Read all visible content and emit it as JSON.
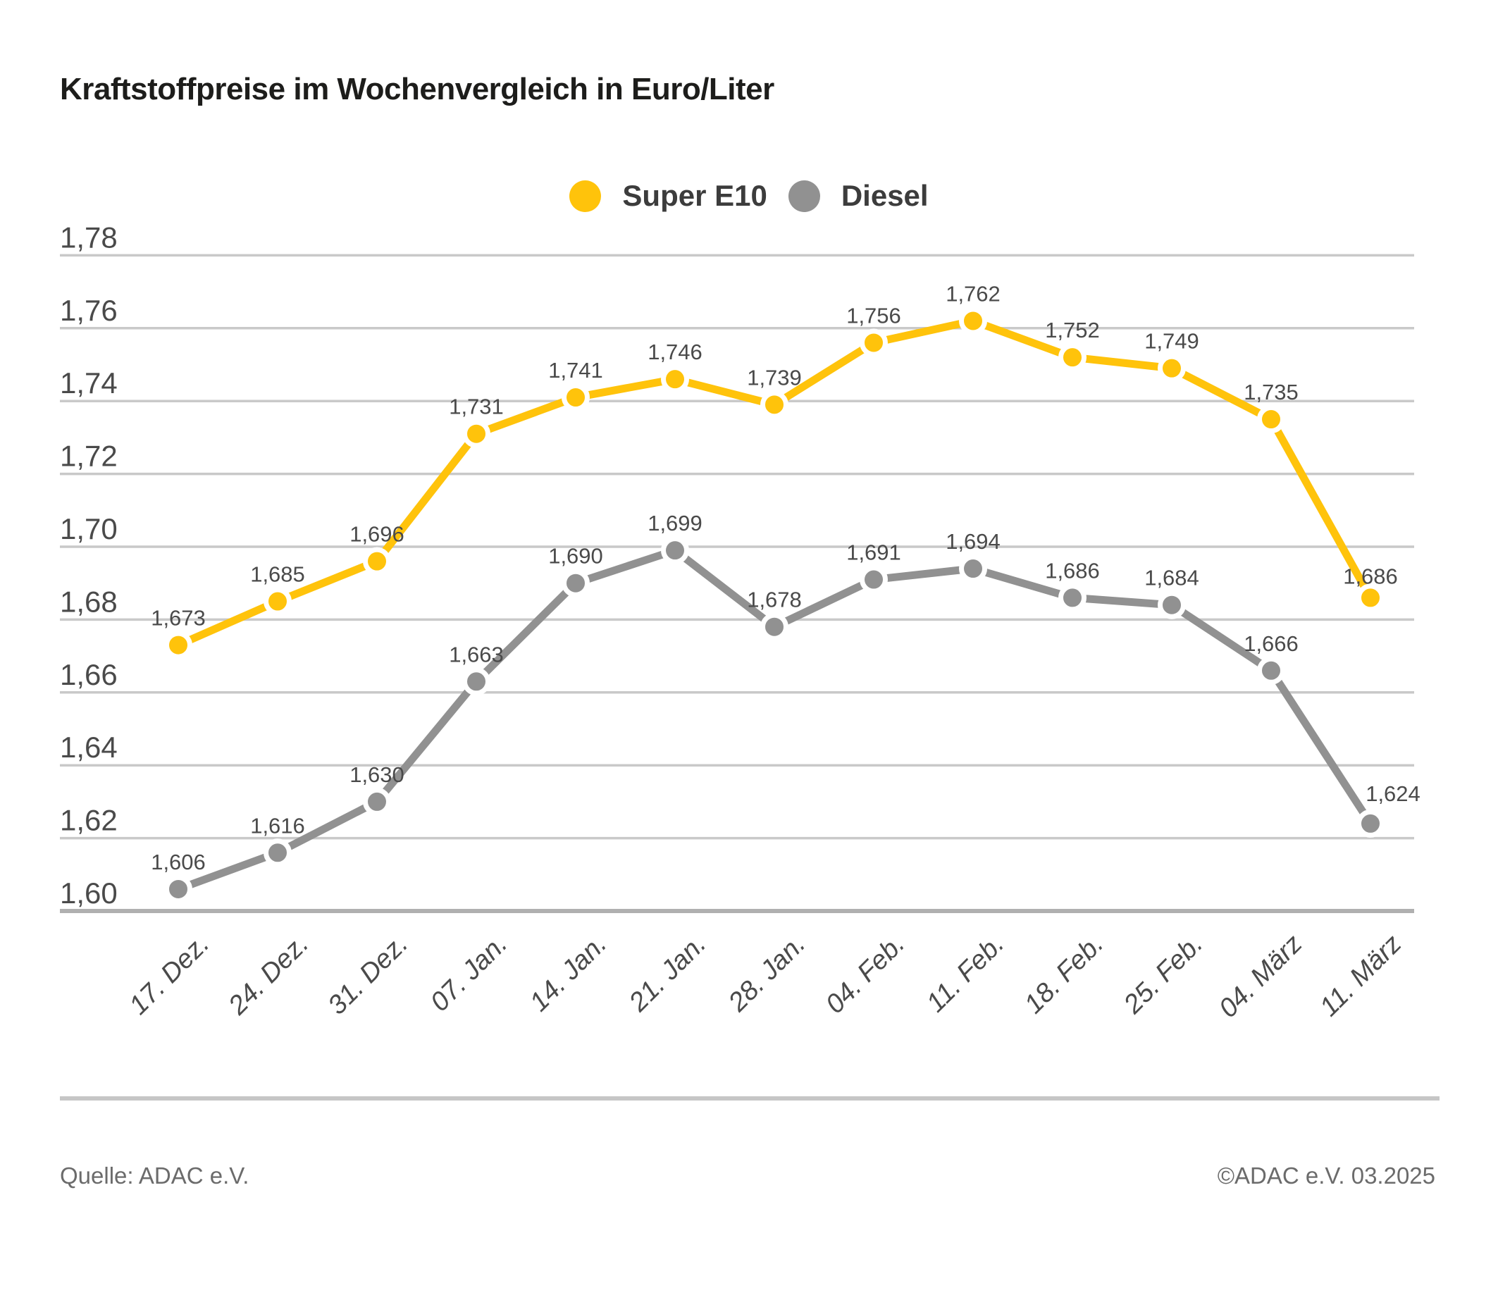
{
  "title": "Kraftstoffpreise im Wochenvergleich in Euro/Liter",
  "chart_data": {
    "type": "line",
    "title": "Kraftstoffpreise im Wochenvergleich in Euro/Liter",
    "categories": [
      "17. Dez.",
      "24. Dez.",
      "31. Dez.",
      "07. Jan.",
      "14. Jan.",
      "21. Jan.",
      "28. Jan.",
      "04. Feb.",
      "11. Feb.",
      "18. Feb.",
      "25. Feb.",
      "04. März",
      "11. März"
    ],
    "series": [
      {
        "name": "Super E10",
        "color": "#ffc30b",
        "values": [
          1.673,
          1.685,
          1.696,
          1.731,
          1.741,
          1.746,
          1.739,
          1.756,
          1.762,
          1.752,
          1.749,
          1.735,
          1.686
        ],
        "labels": [
          "1,673",
          "1,685",
          "1,696",
          "1,731",
          "1,741",
          "1,746",
          "1,739",
          "1,756",
          "1,762",
          "1,752",
          "1,749",
          "1,735",
          "1,686"
        ]
      },
      {
        "name": "Diesel",
        "color": "#919191",
        "values": [
          1.606,
          1.616,
          1.63,
          1.663,
          1.69,
          1.699,
          1.678,
          1.691,
          1.694,
          1.686,
          1.684,
          1.666,
          1.624
        ],
        "labels": [
          "1,606",
          "1,616",
          "1,630",
          "1,663",
          "1,690",
          "1,699",
          "1,678",
          "1,691",
          "1,694",
          "1,686",
          "1,684",
          "1,666",
          "1,624"
        ]
      }
    ],
    "ylabel": "",
    "xlabel": "",
    "ylim": [
      1.6,
      1.78
    ],
    "ytick_step": 0.02,
    "ytick_labels": [
      "1,60",
      "1,62",
      "1,64",
      "1,66",
      "1,68",
      "1,70",
      "1,72",
      "1,74",
      "1,76",
      "1,78"
    ],
    "grid": "horizontal",
    "legend_position": "top-center"
  },
  "footer": {
    "source": "Quelle: ADAC e.V.",
    "copyright": "©ADAC e.V. 03.2025"
  },
  "colors": {
    "accent_yellow": "#ffc30b",
    "series_gray": "#919191",
    "gridline": "#c9c9c9",
    "axis_line": "#b0b0b0",
    "title_text": "#1d1d1b",
    "axis_text": "#4a4a4a",
    "legend_text": "#3c3c3c",
    "footer_text": "#6b6b6b"
  }
}
